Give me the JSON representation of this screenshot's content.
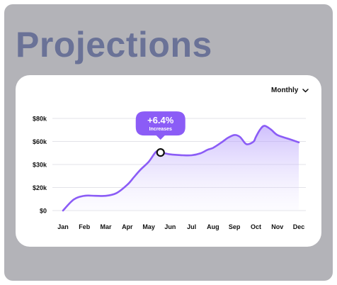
{
  "page": {
    "title": "Projections"
  },
  "controls": {
    "period_label": "Monthly",
    "period_icon": "chevron-down-icon"
  },
  "chart_data": {
    "type": "area",
    "categories": [
      "Jan",
      "Feb",
      "Mar",
      "Apr",
      "May",
      "Jun",
      "Jul",
      "Aug",
      "Sep",
      "Oct",
      "Nov",
      "Dec"
    ],
    "y_tick_labels": [
      "$0",
      "$20k",
      "$30k",
      "$60k",
      "$80k"
    ],
    "series": [
      {
        "x": [
          0,
          0.5,
          1,
          1.5,
          2,
          2.5,
          3,
          3.3,
          3.6,
          4,
          4.35,
          4.6,
          5,
          5.6,
          6,
          6.4,
          6.75,
          7,
          7.4,
          7.7,
          8,
          8.25,
          8.5,
          8.65,
          8.9,
          9,
          9.2,
          9.4,
          9.7,
          10,
          10.5,
          11
        ],
        "y": [
          0,
          0.12,
          0.16,
          0.16,
          0.16,
          0.19,
          0.28,
          0.36,
          0.44,
          0.53,
          0.64,
          0.63,
          0.61,
          0.6,
          0.6,
          0.62,
          0.66,
          0.68,
          0.74,
          0.79,
          0.82,
          0.8,
          0.73,
          0.72,
          0.75,
          0.8,
          0.88,
          0.92,
          0.88,
          0.82,
          0.78,
          0.74
        ],
        "color": "#8b5cf6"
      }
    ],
    "highlight": {
      "x": 4.55,
      "y": 0.63,
      "value_label": "+6.4%",
      "caption": "Increases",
      "color": "#8b5cf6"
    },
    "grid": true,
    "legend": "none"
  }
}
